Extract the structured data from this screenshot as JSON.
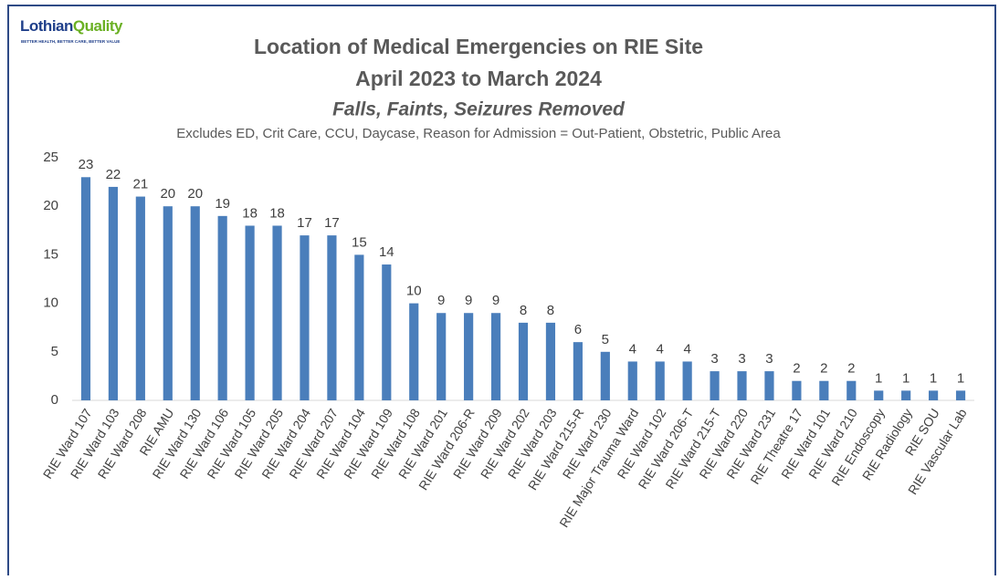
{
  "chart_data": {
    "type": "bar",
    "logo": {
      "name_a": "Lothian",
      "name_b": "Quality",
      "tagline": "BETTER HEALTH, BETTER CARE, BETTER VALUE"
    },
    "title": [
      "Location of Medical Emergencies on RIE Site",
      "April 2023 to March 2024"
    ],
    "subtitle": "Falls, Faints, Seizures Removed",
    "note": "Excludes ED, Crit Care, CCU, Daycase, Reason for Admission = Out-Patient, Obstetric, Public Area",
    "categories": [
      "RIE Ward 107",
      "RIE Ward 103",
      "RIE Ward 208",
      "RIE AMU",
      "RIE Ward 130",
      "RIE Ward 106",
      "RIE Ward 105",
      "RIE Ward 205",
      "RIE Ward 204",
      "RIE Ward 207",
      "RIE Ward 104",
      "RIE Ward 109",
      "RIE Ward 108",
      "RIE Ward 201",
      "RIE Ward 206-R",
      "RIE Ward 209",
      "RIE Ward 202",
      "RIE Ward 203",
      "RIE Ward 215-R",
      "RIE Ward 230",
      "RIE Major Trauma Ward",
      "RIE Ward 102",
      "RIE Ward 206-T",
      "RIE Ward 215-T",
      "RIE Ward 220",
      "RIE Ward 231",
      "RIE Theatre 17",
      "RIE Ward 101",
      "RIE Ward 210",
      "RIE Endoscopy",
      "RIE Radiology",
      "RIE SOU",
      "RIE Vascular Lab"
    ],
    "values": [
      23,
      22,
      21,
      20,
      20,
      19,
      18,
      18,
      17,
      17,
      15,
      14,
      10,
      9,
      9,
      9,
      8,
      8,
      6,
      5,
      4,
      4,
      4,
      3,
      3,
      3,
      2,
      2,
      2,
      1,
      1,
      1,
      1
    ],
    "color": "#4a7ebb",
    "ylim": [
      0,
      25
    ],
    "yticks": [
      0,
      5,
      10,
      15,
      20,
      25
    ],
    "grid": false
  }
}
